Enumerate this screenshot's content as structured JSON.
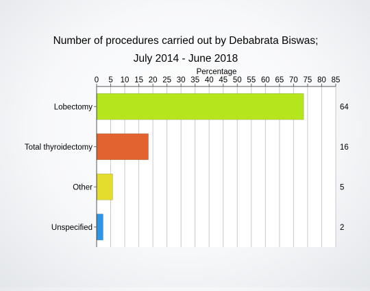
{
  "chart_data": {
    "type": "bar",
    "orientation": "horizontal",
    "title": "Number of procedures carried out by Debabrata Biswas;",
    "subtitle": "July 2014 - June 2018",
    "xlabel": "Percentage",
    "xaxis_position": "top",
    "xlim": [
      0,
      85
    ],
    "xticks": [
      0,
      5,
      10,
      15,
      20,
      25,
      30,
      35,
      40,
      45,
      50,
      55,
      60,
      65,
      70,
      75,
      80,
      85
    ],
    "grid": true,
    "categories": [
      "Lobectomy",
      "Total thyroidectomy",
      "Other",
      "Unspecified"
    ],
    "values": [
      73.6,
      18.4,
      5.7,
      2.3
    ],
    "counts": [
      "64",
      "16",
      "5",
      "2"
    ],
    "colors": [
      "#b5e61d",
      "#e2632f",
      "#e5dd2d",
      "#2f96e6"
    ]
  }
}
